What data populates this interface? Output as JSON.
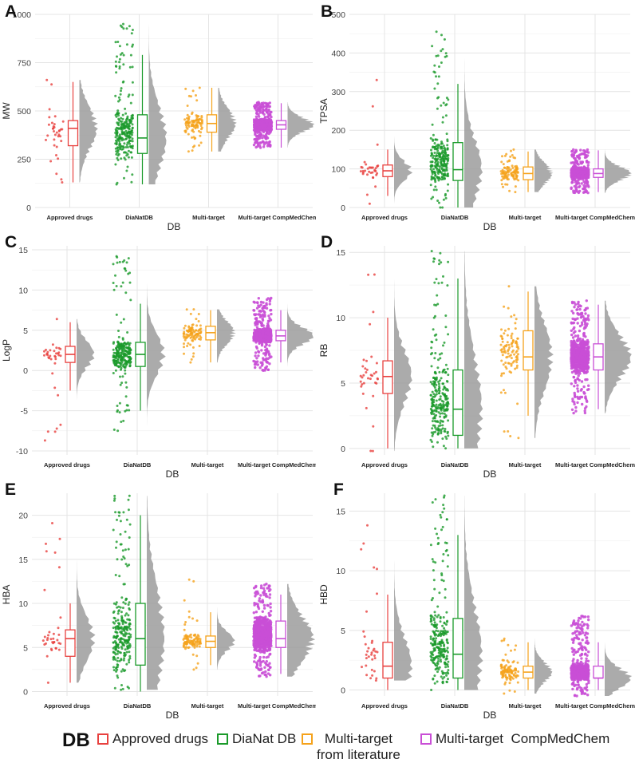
{
  "legend": {
    "title": "DB",
    "items": [
      {
        "label": "Approved drugs",
        "color": "#e8413f"
      },
      {
        "label": "DiaNat DB",
        "color": "#1a9a2a"
      },
      {
        "label": "Multi-target\nfrom literature",
        "color": "#f5a21b"
      },
      {
        "label": "Multi-target  CompMedChem",
        "color": "#c94fd6"
      }
    ]
  },
  "colors": {
    "approved": "#e8413f",
    "dianat": "#1a9a2a",
    "multi": "#f5a21b",
    "compmed": "#c94fd6",
    "density": "#9c9c9c",
    "grid": "#e4e4e4"
  },
  "chart_data": [
    {
      "panel": "A",
      "type": "raincloud",
      "ylabel": "MW",
      "xlabel": "DB",
      "categories": [
        "Approved drugs",
        "DiaNatDB",
        "Multi-target",
        "Multi-target CompMedChem"
      ],
      "yticks": [
        0,
        250,
        500,
        750,
        1000
      ],
      "ylim": [
        0,
        1000
      ],
      "groups": [
        {
          "min": 130,
          "q1": 320,
          "median": 410,
          "q3": 450,
          "max": 650,
          "pmin": 130,
          "pmax": 660,
          "n": 35
        },
        {
          "min": 120,
          "q1": 280,
          "median": 360,
          "q3": 480,
          "max": 790,
          "pmin": 120,
          "pmax": 950,
          "n": 260
        },
        {
          "min": 290,
          "q1": 390,
          "median": 435,
          "q3": 480,
          "max": 620,
          "pmin": 290,
          "pmax": 620,
          "n": 100
        },
        {
          "min": 310,
          "q1": 405,
          "median": 428,
          "q3": 450,
          "max": 540,
          "pmin": 310,
          "pmax": 545,
          "n": 700
        }
      ]
    },
    {
      "panel": "B",
      "type": "raincloud",
      "ylabel": "TPSA",
      "xlabel": "DB",
      "categories": [
        "Approved drugs",
        "DiaNatDB",
        "Multi-target",
        "Multi-target CompMedChem"
      ],
      "yticks": [
        0,
        100,
        200,
        300,
        400,
        500
      ],
      "ylim": [
        0,
        500
      ],
      "groups": [
        {
          "min": 30,
          "q1": 80,
          "median": 95,
          "q3": 110,
          "max": 150,
          "pmin": 10,
          "pmax": 330,
          "n": 35
        },
        {
          "min": 0,
          "q1": 70,
          "median": 98,
          "q3": 168,
          "max": 320,
          "pmin": 0,
          "pmax": 455,
          "n": 260
        },
        {
          "min": 40,
          "q1": 72,
          "median": 88,
          "q3": 105,
          "max": 145,
          "pmin": 40,
          "pmax": 150,
          "n": 100
        },
        {
          "min": 40,
          "q1": 78,
          "median": 88,
          "q3": 100,
          "max": 148,
          "pmin": 38,
          "pmax": 150,
          "n": 700
        }
      ]
    },
    {
      "panel": "C",
      "type": "raincloud",
      "ylabel": "LogP",
      "xlabel": "DB",
      "categories": [
        "Approved drugs",
        "DiaNatDB",
        "Multi-target",
        "Multi-target CompMedChem"
      ],
      "yticks": [
        -10,
        -5,
        0,
        5,
        10,
        15
      ],
      "ylim": [
        -10.5,
        15.5
      ],
      "groups": [
        {
          "min": -2.5,
          "q1": 1.0,
          "median": 2.0,
          "q3": 3.0,
          "max": 6.0,
          "pmin": -8.7,
          "pmax": 6.4,
          "n": 35
        },
        {
          "min": -5.0,
          "q1": 0.5,
          "median": 2.0,
          "q3": 3.5,
          "max": 8.3,
          "pmin": -7.5,
          "pmax": 14.2,
          "n": 260
        },
        {
          "min": 1.0,
          "q1": 3.8,
          "median": 4.7,
          "q3": 5.5,
          "max": 7.5,
          "pmin": 1.0,
          "pmax": 7.6,
          "n": 100
        },
        {
          "min": 1.0,
          "q1": 3.7,
          "median": 4.3,
          "q3": 5.0,
          "max": 7.5,
          "pmin": 0.0,
          "pmax": 9.0,
          "n": 700
        }
      ]
    },
    {
      "panel": "D",
      "type": "raincloud",
      "ylabel": "RB",
      "xlabel": "DB",
      "categories": [
        "Approved drugs",
        "DiaNatDB",
        "Multi-target",
        "Multi-target CompMedChem"
      ],
      "yticks": [
        0,
        5,
        10,
        15
      ],
      "ylim": [
        -0.5,
        15.5
      ],
      "groups": [
        {
          "min": 0,
          "q1": 4.2,
          "median": 5.5,
          "q3": 6.7,
          "max": 10,
          "pmin": -0.2,
          "pmax": 13.3,
          "n": 35
        },
        {
          "min": 0,
          "q1": 1.0,
          "median": 3.0,
          "q3": 6.0,
          "max": 13.0,
          "pmin": 0,
          "pmax": 15.1,
          "n": 260
        },
        {
          "min": 2.5,
          "q1": 6.0,
          "median": 7.0,
          "q3": 9.0,
          "max": 12.0,
          "pmin": 0.8,
          "pmax": 12.4,
          "n": 100
        },
        {
          "min": 3.0,
          "q1": 6.0,
          "median": 7.0,
          "q3": 8.0,
          "max": 11.0,
          "pmin": 2.7,
          "pmax": 11.3,
          "n": 700
        }
      ]
    },
    {
      "panel": "E",
      "type": "raincloud",
      "ylabel": "HBA",
      "xlabel": "DB",
      "categories": [
        "Approved drugs",
        "DiaNatDB",
        "Multi-target",
        "Multi-target CompMedChem"
      ],
      "yticks": [
        0,
        5,
        10,
        15,
        20
      ],
      "ylim": [
        -0.5,
        22.5
      ],
      "groups": [
        {
          "min": 1,
          "q1": 4,
          "median": 6,
          "q3": 7,
          "max": 10,
          "pmin": 1,
          "pmax": 19.1,
          "n": 35
        },
        {
          "min": 0,
          "q1": 3,
          "median": 6,
          "q3": 10,
          "max": 20,
          "pmin": 0.2,
          "pmax": 22.2,
          "n": 260
        },
        {
          "min": 3,
          "q1": 5,
          "median": 5.7,
          "q3": 6.3,
          "max": 9,
          "pmin": 2.5,
          "pmax": 12.7,
          "n": 100
        },
        {
          "min": 2,
          "q1": 5,
          "median": 6,
          "q3": 8,
          "max": 11,
          "pmin": 1.7,
          "pmax": 12.2,
          "n": 700
        }
      ]
    },
    {
      "panel": "F",
      "type": "raincloud",
      "ylabel": "HBD",
      "xlabel": "DB",
      "categories": [
        "Approved drugs",
        "DiaNatDB",
        "Multi-target",
        "Multi-target CompMedChem"
      ],
      "yticks": [
        0,
        5,
        10,
        15
      ],
      "ylim": [
        -0.5,
        16.5
      ],
      "groups": [
        {
          "min": 0,
          "q1": 1,
          "median": 2,
          "q3": 4,
          "max": 8,
          "pmin": 0.8,
          "pmax": 13.8,
          "n": 35
        },
        {
          "min": 0,
          "q1": 1,
          "median": 3,
          "q3": 6,
          "max": 13,
          "pmin": 0,
          "pmax": 16.3,
          "n": 260
        },
        {
          "min": 0,
          "q1": 1,
          "median": 1.5,
          "q3": 2,
          "max": 4,
          "pmin": -0.3,
          "pmax": 4.3,
          "n": 100
        },
        {
          "min": 0,
          "q1": 1,
          "median": 1,
          "q3": 2,
          "max": 4,
          "pmin": -0.5,
          "pmax": 6.2,
          "n": 700
        }
      ]
    }
  ],
  "panels": [
    {
      "id": "A",
      "label": "A"
    },
    {
      "id": "B",
      "label": "B"
    },
    {
      "id": "C",
      "label": "C"
    },
    {
      "id": "D",
      "label": "D"
    },
    {
      "id": "E",
      "label": "E"
    },
    {
      "id": "F",
      "label": "F"
    }
  ]
}
